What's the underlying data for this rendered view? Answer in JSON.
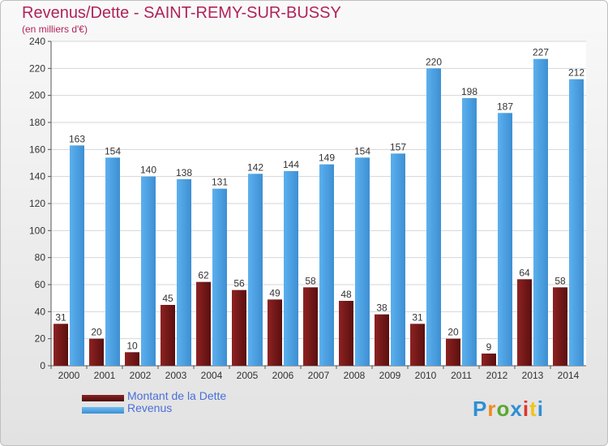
{
  "chart_data": {
    "type": "bar",
    "title": "Revenus/Dette - SAINT-REMY-SUR-BUSSY",
    "subtitle": "(en milliers d'€)",
    "categories": [
      "2000",
      "2001",
      "2002",
      "2003",
      "2004",
      "2005",
      "2006",
      "2007",
      "2008",
      "2009",
      "2010",
      "2011",
      "2012",
      "2013",
      "2014"
    ],
    "series": [
      {
        "name": "Montant de la Dette",
        "color": "#7a1a1a",
        "values": [
          31,
          20,
          10,
          45,
          62,
          56,
          49,
          58,
          48,
          38,
          31,
          20,
          9,
          64,
          58
        ]
      },
      {
        "name": "Revenus",
        "color": "#4a9fe0",
        "values": [
          163,
          154,
          140,
          138,
          131,
          142,
          144,
          149,
          154,
          157,
          220,
          198,
          187,
          227,
          212
        ]
      }
    ],
    "ylim": [
      0,
      240
    ],
    "yticks": [
      0,
      20,
      40,
      60,
      80,
      100,
      120,
      140,
      160,
      180,
      200,
      220,
      240
    ],
    "grid": true,
    "legend_position": "bottom-left",
    "xlabel": "",
    "ylabel": ""
  },
  "logo": {
    "text": "Proxiti",
    "colors": [
      "#2d8fd5",
      "#f08a1d",
      "#5aa832",
      "#2d8fd5",
      "#e0342a",
      "#f0c419",
      "#2d8fd5"
    ]
  }
}
